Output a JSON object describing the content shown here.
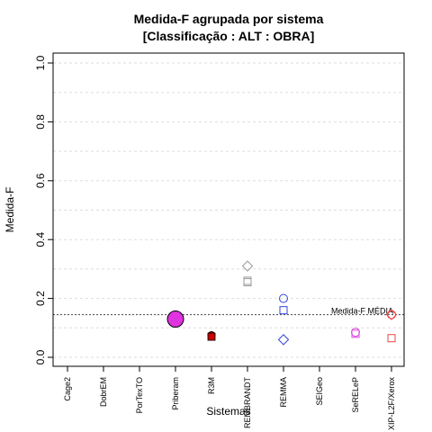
{
  "chart_data": {
    "type": "scatter",
    "title_line1": "Medida-F agrupada por sistema",
    "title_line2": "[Classificação : ALT : OBRA]",
    "xlabel": "Sistemas",
    "ylabel": "Medida-F",
    "ylim": [
      0,
      1.0
    ],
    "yticks": [
      "0.0",
      "0.2",
      "0.4",
      "0.6",
      "0.8",
      "1.0"
    ],
    "grid": true,
    "categories": [
      "Cage2",
      "DobrEM",
      "PorTexTO",
      "Priberam",
      "R3M",
      "REMBRANDT",
      "REMMA",
      "SEIGeo",
      "SeRELeP",
      "XIP-L2F/Xerox"
    ],
    "mean_line": {
      "value": 0.145,
      "label": "Medida-F MÉDIA"
    },
    "points": [
      {
        "category": "Priberam",
        "y": 0.13,
        "shape": "circle-filled-large",
        "color": "#e033e0"
      },
      {
        "category": "R3M",
        "y": 0.075,
        "shape": "circle-filled",
        "color": "#cc0000"
      },
      {
        "category": "R3M",
        "y": 0.07,
        "shape": "square-filled",
        "color": "#cc0000"
      },
      {
        "category": "REMBRANDT",
        "y": 0.31,
        "shape": "diamond",
        "color": "#999999"
      },
      {
        "category": "REMBRANDT",
        "y": 0.26,
        "shape": "square",
        "color": "#999999"
      },
      {
        "category": "REMBRANDT",
        "y": 0.255,
        "shape": "square",
        "color": "#999999"
      },
      {
        "category": "REMMA",
        "y": 0.2,
        "shape": "circle",
        "color": "#3344dd"
      },
      {
        "category": "REMMA",
        "y": 0.16,
        "shape": "square",
        "color": "#3344dd"
      },
      {
        "category": "REMMA",
        "y": 0.06,
        "shape": "diamond",
        "color": "#3344dd"
      },
      {
        "category": "SeRELeP",
        "y": 0.085,
        "shape": "circle",
        "color": "#dd44dd"
      },
      {
        "category": "SeRELeP",
        "y": 0.08,
        "shape": "square",
        "color": "#dd44dd"
      },
      {
        "category": "XIP-L2F/Xerox",
        "y": 0.145,
        "shape": "circle",
        "color": "#ee4444"
      },
      {
        "category": "XIP-L2F/Xerox",
        "y": 0.145,
        "shape": "diamond",
        "color": "#ee4444"
      },
      {
        "category": "XIP-L2F/Xerox",
        "y": 0.065,
        "shape": "square",
        "color": "#ee4444"
      }
    ]
  }
}
